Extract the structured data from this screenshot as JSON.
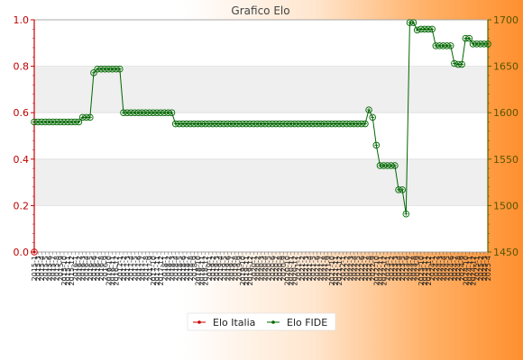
{
  "chart_data": {
    "type": "line",
    "title": "Grafico Elo",
    "y_left": {
      "min": 0.0,
      "max": 1.0,
      "ticks": [
        "0.0",
        "0.2",
        "0.4",
        "0.6",
        "0.8",
        "1.0"
      ],
      "color": "#cc0000"
    },
    "y_right": {
      "min": 1450,
      "max": 1700,
      "ticks": [
        "1450",
        "1500",
        "1550",
        "1600",
        "1650",
        "1700"
      ],
      "color": "#556600"
    },
    "grid": true,
    "legend_position": "bottom-center",
    "series": [
      {
        "name": "Elo Italia",
        "axis": "left",
        "color": "#cc0000",
        "values": [
          0.0
        ]
      },
      {
        "name": "Elo FIDE",
        "axis": "right",
        "color": "#006600",
        "values": [
          1590,
          1590,
          1590,
          1590,
          1590,
          1590,
          1590,
          1590,
          1590,
          1590,
          1590,
          1590,
          1590,
          1595,
          1595,
          1595,
          1643,
          1647,
          1647,
          1647,
          1647,
          1647,
          1647,
          1647,
          1600,
          1600,
          1600,
          1600,
          1600,
          1600,
          1600,
          1600,
          1600,
          1600,
          1600,
          1600,
          1600,
          1600,
          1588,
          1588,
          1588,
          1588,
          1588,
          1588,
          1588,
          1588,
          1588,
          1588,
          1588,
          1588,
          1588,
          1588,
          1588,
          1588,
          1588,
          1588,
          1588,
          1588,
          1588,
          1588,
          1588,
          1588,
          1588,
          1588,
          1588,
          1588,
          1588,
          1588,
          1588,
          1588,
          1588,
          1588,
          1588,
          1588,
          1588,
          1588,
          1588,
          1588,
          1588,
          1588,
          1588,
          1588,
          1588,
          1588,
          1588,
          1588,
          1588,
          1588,
          1588,
          1588,
          1603,
          1595,
          1565,
          1543,
          1543,
          1543,
          1543,
          1543,
          1517,
          1517,
          1491,
          1697,
          1697,
          1689,
          1690,
          1690,
          1690,
          1690,
          1672,
          1672,
          1672,
          1672,
          1672,
          1653,
          1652,
          1652,
          1680,
          1680,
          1674,
          1674,
          1674,
          1674,
          1674
        ]
      }
    ],
    "x_tick_labels": [
      "2015-1",
      "2015-3",
      "2015-4",
      "2015-5",
      "2015-6",
      "2015-7",
      "2015-8",
      "2015-9",
      "2015-10",
      "2015-11",
      "2015-12",
      "2016-1",
      "2016-2",
      "2016-3",
      "2016-4",
      "2016-5",
      "2016-6",
      "2016-7",
      "2016-8",
      "2016-9",
      "2016-10",
      "2016-11",
      "2016-12",
      "2017-1",
      "2017-2",
      "2017-3",
      "2017-4",
      "2017-5",
      "2017-6",
      "2017-7",
      "2017-8",
      "2017-9",
      "2017-10",
      "2017-11",
      "2017-12",
      "2018-1",
      "2018-2",
      "2018-3",
      "2018-4",
      "2018-5",
      "2018-6",
      "2018-7",
      "2018-8",
      "2018-9",
      "2018-10",
      "2018-11",
      "2018-12",
      "2019-1",
      "2019-2",
      "2019-3",
      "2019-4",
      "2019-5",
      "2019-6",
      "2019-7",
      "2019-8",
      "2019-9",
      "2019-10",
      "2019-11",
      "2019-12",
      "2020-1",
      "2020-2",
      "2020-3",
      "2020-4",
      "2020-5",
      "2020-6",
      "2020-7",
      "2020-8",
      "2020-9",
      "2020-10",
      "2020-11",
      "2020-12",
      "2021-1",
      "2021-2",
      "2021-3",
      "2021-4",
      "2021-5",
      "2021-6",
      "2021-7",
      "2021-8",
      "2021-9",
      "2021-10",
      "2021-11",
      "2021-12",
      "2022-1",
      "2022-2",
      "2022-3",
      "2022-4",
      "2022-5",
      "2022-6",
      "2022-7",
      "2022-8",
      "2022-9",
      "2022-10",
      "2022-11",
      "2022-12",
      "2023-1",
      "2023-2",
      "2023-3",
      "2023-4",
      "2023-5",
      "2023-6",
      "2023-7",
      "2023-8",
      "2023-9",
      "2023-10",
      "2023-11",
      "2023-12",
      "2024-1",
      "2024-2",
      "2024-3",
      "2024-4",
      "2024-5",
      "2024-6",
      "2024-7",
      "2024-8",
      "2024-9",
      "2024-10",
      "2024-11",
      "2024-12",
      "2025-1",
      "2025-2",
      "2025-3",
      "2025-4"
    ]
  }
}
